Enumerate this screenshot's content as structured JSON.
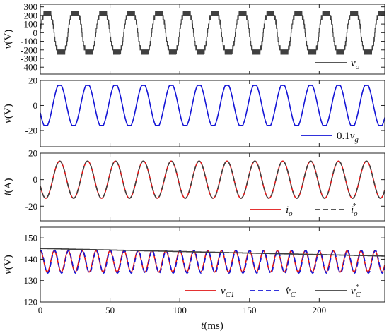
{
  "chart_data": [
    {
      "type": "line",
      "ylabel_base": "v",
      "ylabel_unit": "(V)",
      "ylim": [
        -480,
        330
      ],
      "yticks": [
        -400,
        -300,
        -200,
        -100,
        0,
        100,
        200,
        300
      ],
      "xlim": [
        0,
        247
      ],
      "grid": false,
      "legend_position": "bottom-right",
      "series": [
        {
          "name": "v_o",
          "legend_main": "v",
          "legend_sub": "o",
          "legend_sup": "",
          "legend_prefix": "",
          "color": "#404040",
          "style": "solid",
          "waveform": "multilevel",
          "amplitude": 300,
          "levels": [
            0,
            50,
            100,
            150,
            200,
            250,
            300
          ],
          "period_ms": 20,
          "phase_deg": 0
        }
      ]
    },
    {
      "type": "line",
      "ylabel_base": "v",
      "ylabel_unit": "(V)",
      "ylim": [
        -33,
        20
      ],
      "yticks": [
        -20,
        0,
        20
      ],
      "xlim": [
        0,
        247
      ],
      "grid": false,
      "legend_position": "bottom-right",
      "series": [
        {
          "name": "0.1v_g",
          "legend_main": "v",
          "legend_sub": "g",
          "legend_sup": "",
          "legend_prefix": "0.1",
          "color": "#1515d6",
          "style": "solid",
          "waveform": "sine_flat",
          "amplitude": 16,
          "offset": 0,
          "period_ms": 20,
          "phase_deg": 200
        }
      ]
    },
    {
      "type": "line",
      "ylabel_base": "i",
      "ylabel_unit": "(A)",
      "ylim": [
        -31,
        20
      ],
      "yticks": [
        -20,
        0,
        20
      ],
      "xlim": [
        0,
        247
      ],
      "grid": false,
      "legend_position": "bottom-right",
      "series": [
        {
          "name": "i_o",
          "legend_main": "i",
          "legend_sub": "o",
          "legend_sup": "",
          "legend_prefix": "",
          "color": "#e01515",
          "style": "solid",
          "waveform": "sine",
          "amplitude": 14,
          "offset": 0,
          "period_ms": 20,
          "phase_deg": 200
        },
        {
          "name": "i_o*",
          "legend_main": "i",
          "legend_sub": "o",
          "legend_sup": "*",
          "legend_prefix": "",
          "color": "#404040",
          "style": "dashed",
          "waveform": "sine",
          "amplitude": 14,
          "offset": 0,
          "period_ms": 20,
          "phase_deg": 200
        }
      ]
    },
    {
      "type": "line",
      "ylabel_base": "v",
      "ylabel_unit": "(V)",
      "ylim": [
        120,
        155
      ],
      "yticks": [
        120,
        130,
        140,
        150
      ],
      "xlim": [
        0,
        247
      ],
      "grid": false,
      "legend_position": "bottom-right",
      "series": [
        {
          "name": "v_C1",
          "legend_main": "v",
          "legend_sub": "C1",
          "legend_sup": "",
          "legend_prefix": "",
          "color": "#e01515",
          "style": "solid",
          "waveform": "sine",
          "amplitude": 5,
          "offset": 139,
          "period_ms": 10,
          "phase_deg": 90
        },
        {
          "name": "v̂_C",
          "legend_main": "v̂",
          "legend_sub": "C",
          "legend_sup": "",
          "legend_prefix": "",
          "color": "#1515d6",
          "style": "dashed",
          "waveform": "sine",
          "amplitude": 5.3,
          "offset": 138.8,
          "period_ms": 10,
          "phase_deg": 80
        },
        {
          "name": "v_C*",
          "legend_main": "v",
          "legend_sub": "C",
          "legend_sup": "*",
          "legend_prefix": "",
          "color": "#404040",
          "style": "solid",
          "waveform": "staircase",
          "start": 145,
          "end": 141.5,
          "step_ms": 5
        }
      ]
    }
  ],
  "xaxis": {
    "label_italic": "t",
    "label_unit": "(ms)",
    "ticks": [
      0,
      50,
      100,
      150,
      200
    ]
  }
}
